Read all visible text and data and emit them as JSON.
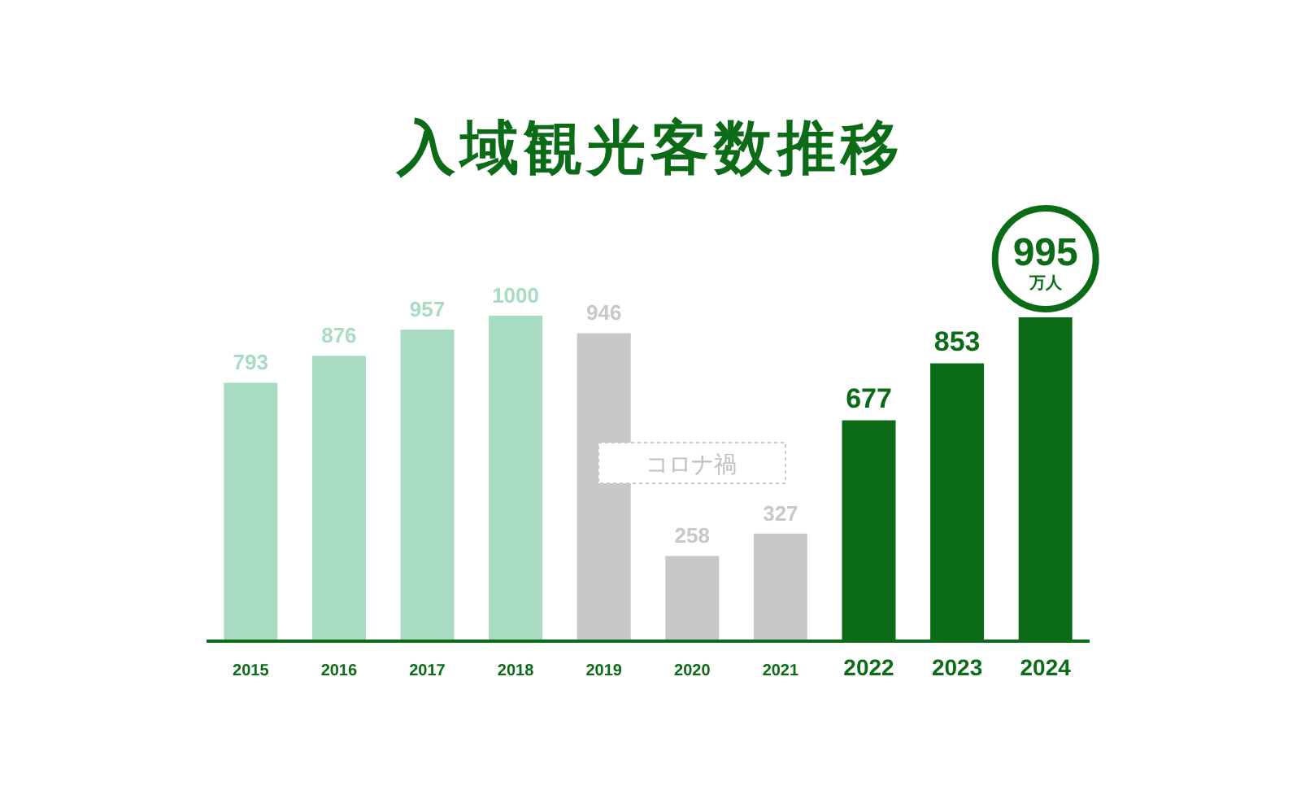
{
  "chart_data": {
    "type": "bar",
    "title": "入域観光客数推移",
    "categories": [
      "2015",
      "2016",
      "2017",
      "2018",
      "2019",
      "2020",
      "2021",
      "2022",
      "2023",
      "2024"
    ],
    "values": [
      793,
      876,
      957,
      1000,
      946,
      258,
      327,
      677,
      853,
      995
    ],
    "colors": [
      "#a8dcc2",
      "#a8dcc2",
      "#a8dcc2",
      "#a8dcc2",
      "#c8c8c8",
      "#c8c8c8",
      "#c8c8c8",
      "#0b6b17",
      "#0b6b17",
      "#0b6b17"
    ],
    "data_labels": true,
    "annotations": [
      "万人",
      "コロナ禍"
    ]
  }
}
